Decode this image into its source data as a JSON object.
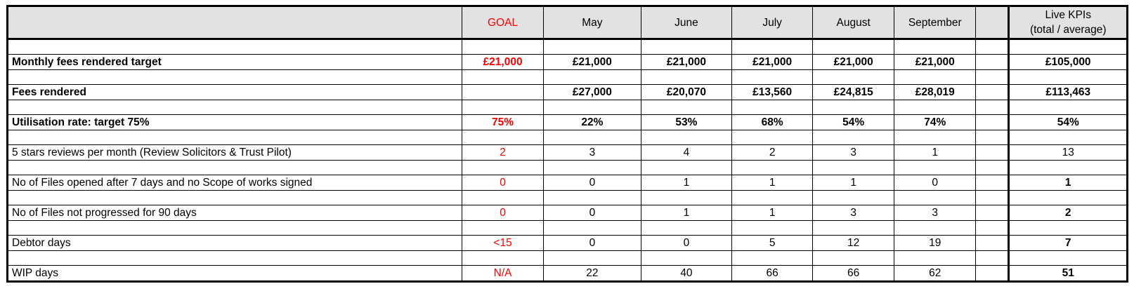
{
  "header": {
    "label": "",
    "goal": "GOAL",
    "months": [
      "May",
      "June",
      "July",
      "August",
      "September"
    ],
    "live_line1": "Live KPIs",
    "live_line2": "(total / average)"
  },
  "rows": [
    {
      "label": "Monthly fees rendered target",
      "goal": "£21,000",
      "values": [
        "£21,000",
        "£21,000",
        "£21,000",
        "£21,000",
        "£21,000"
      ],
      "live": "£105,000"
    },
    {
      "label": "Fees rendered",
      "goal": "",
      "values": [
        "£27,000",
        "£20,070",
        "£13,560",
        "£24,815",
        "£28,019"
      ],
      "live": "£113,463"
    },
    {
      "label": "Utilisation rate: target 75%",
      "goal": "75%",
      "values": [
        "22%",
        "53%",
        "68%",
        "54%",
        "74%"
      ],
      "live": "54%"
    },
    {
      "label": "5 stars reviews per month (Review Solicitors & Trust Pilot)",
      "goal": "2",
      "values": [
        "3",
        "4",
        "2",
        "3",
        "1"
      ],
      "live": "13"
    },
    {
      "label": "No of Files opened after 7 days and no Scope of works signed",
      "goal": "0",
      "values": [
        "0",
        "1",
        "1",
        "1",
        "0"
      ],
      "live": "1"
    },
    {
      "label": "No of Files not progressed for 90 days",
      "goal": "0",
      "values": [
        "0",
        "1",
        "1",
        "3",
        "3"
      ],
      "live": "2"
    },
    {
      "label": "Debtor days",
      "goal": "<15",
      "values": [
        "0",
        "0",
        "5",
        "12",
        "19"
      ],
      "live": "7"
    },
    {
      "label": "WIP days",
      "goal": "N/A",
      "values": [
        "22",
        "40",
        "66",
        "66",
        "62"
      ],
      "live": "51"
    }
  ],
  "colors": {
    "goal": "#ff0000",
    "header_bg": "#e2e2e2"
  }
}
